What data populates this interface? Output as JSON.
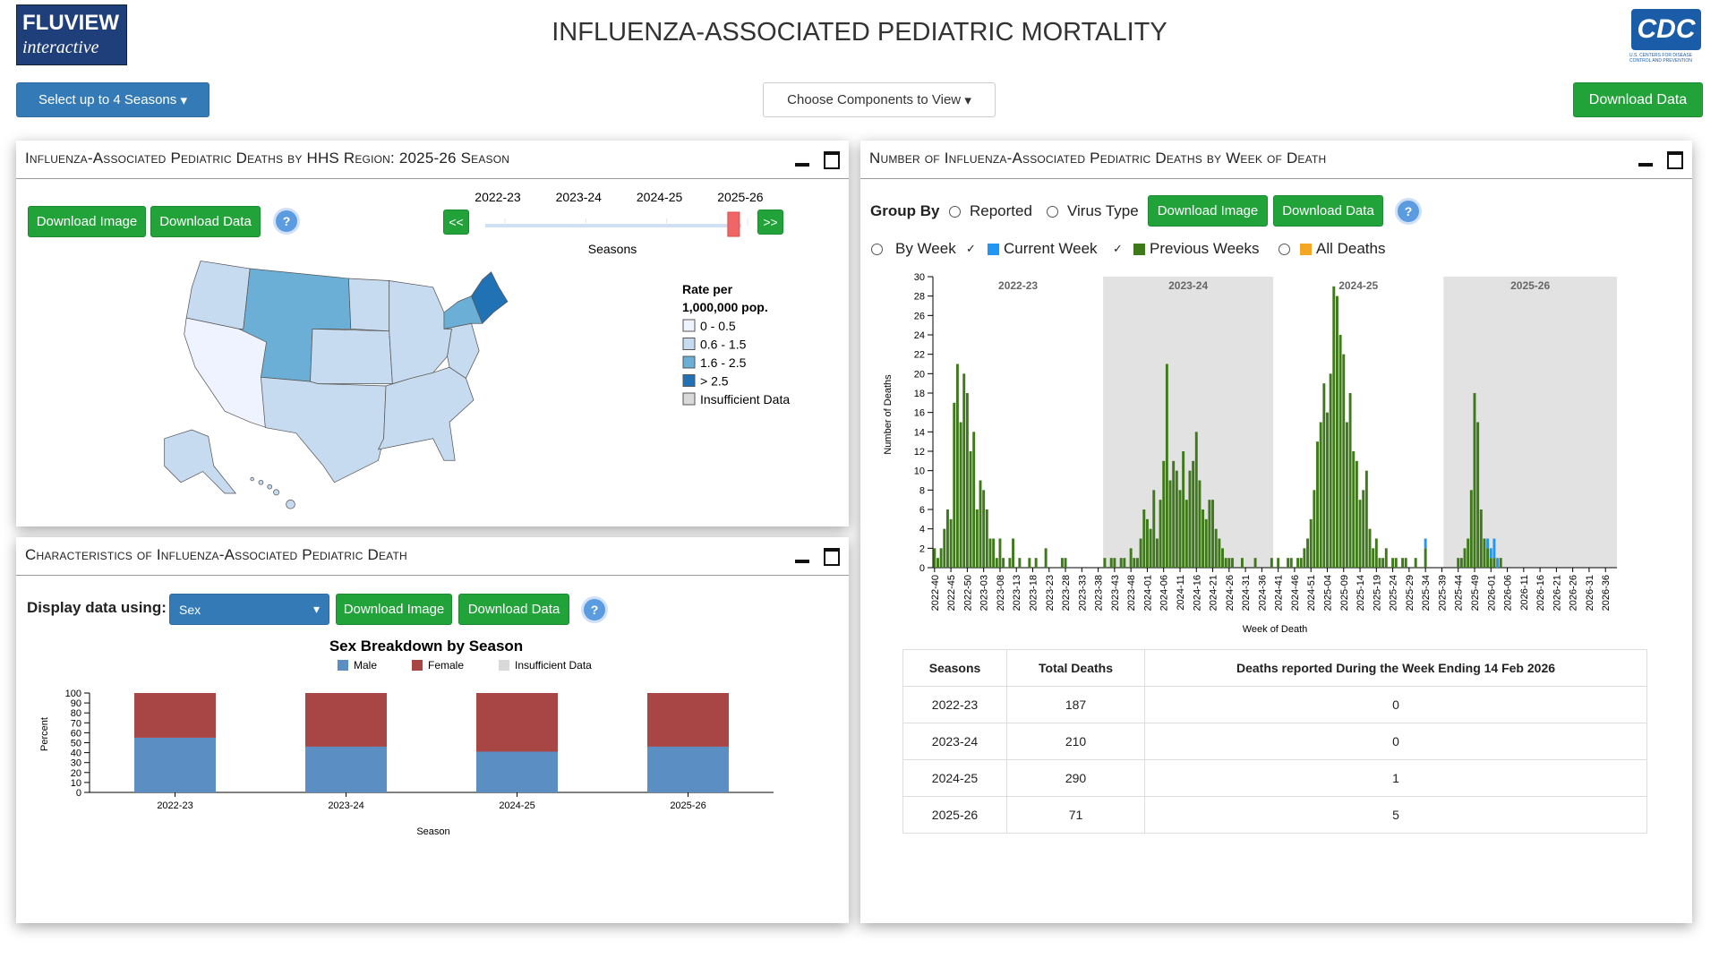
{
  "header": {
    "logo_name": "FLUVIEW",
    "logo_tagline": "interactive",
    "title": "INFLUENZA-ASSOCIATED PEDIATRIC MORTALITY",
    "agency_logo": "CDC",
    "agency_caption": "U.S. CENTERS FOR DISEASE CONTROL AND PREVENTION"
  },
  "toolbar": {
    "seasons_button": "Select up to 4 Seasons",
    "components_button": "Choose Components to View",
    "download_button": "Download Data"
  },
  "map_panel": {
    "title": "Influenza-Associated Pediatric Deaths by HHS Region: 2025-26 Season",
    "download_image": "Download Image",
    "download_data": "Download Data",
    "help": "?",
    "prev": "<<",
    "next": ">>",
    "seasons": [
      "2022-23",
      "2023-24",
      "2024-25",
      "2025-26"
    ],
    "seasons_label": "Seasons",
    "selected_index": 3
  },
  "characteristics_panel": {
    "title": "Characteristics of Influenza-Associated Pediatric Death",
    "display_label": "Display data using:",
    "select_value": "Sex",
    "download_image": "Download Image",
    "download_data": "Download Data",
    "help": "?"
  },
  "weekly_panel": {
    "title": "Number of Influenza-Associated Pediatric Deaths by Week of Death",
    "group_by": "Group By",
    "option_reported": "Reported",
    "option_virus": "Virus Type",
    "download_image": "Download Image",
    "download_data": "Download Data",
    "help": "?",
    "option_by_week": "By Week",
    "option_all_deaths": "All Deaths",
    "all_deaths_color": "#f5a623"
  },
  "table": {
    "columns": [
      "Seasons",
      "Total Deaths",
      "Deaths reported During the Week Ending 14 Feb 2026"
    ],
    "rows": [
      [
        "2022-23",
        187,
        0
      ],
      [
        "2023-24",
        210,
        0
      ],
      [
        "2024-25",
        290,
        1
      ],
      [
        "2025-26",
        71,
        5
      ]
    ]
  },
  "chart_data": [
    {
      "type": "bar",
      "stacked": true,
      "xlabel": "Week of Death",
      "ylabel": "Number of Deaths",
      "ylim": [
        0,
        30
      ],
      "yticks": [
        0,
        2,
        4,
        6,
        8,
        10,
        12,
        14,
        16,
        18,
        20,
        22,
        24,
        26,
        28,
        30
      ],
      "seasons": [
        {
          "label": "2022-23",
          "weeks": 52,
          "shaded": false
        },
        {
          "label": "2023-24",
          "weeks": 52,
          "shaded": true
        },
        {
          "label": "2024-25",
          "weeks": 52,
          "shaded": false
        },
        {
          "label": "2025-26",
          "weeks": 53,
          "shaded": true
        }
      ],
      "categories": [
        "2022-40",
        null,
        null,
        null,
        null,
        "2022-45",
        null,
        null,
        null,
        null,
        "2022-50",
        null,
        null,
        null,
        null,
        "2023-03",
        null,
        null,
        null,
        null,
        "2023-08",
        null,
        null,
        null,
        null,
        "2023-13",
        null,
        null,
        null,
        null,
        "2023-18",
        null,
        null,
        null,
        null,
        "2023-23",
        null,
        null,
        null,
        null,
        "2023-28",
        null,
        null,
        null,
        null,
        "2023-33",
        null,
        null,
        null,
        null,
        "2023-38",
        null,
        null,
        null,
        null,
        "2023-43",
        null,
        null,
        null,
        null,
        "2023-48",
        null,
        null,
        null,
        null,
        "2024-01",
        null,
        null,
        null,
        null,
        "2024-06",
        null,
        null,
        null,
        null,
        "2024-11",
        null,
        null,
        null,
        null,
        "2024-16",
        null,
        null,
        null,
        null,
        "2024-21",
        null,
        null,
        null,
        null,
        "2024-26",
        null,
        null,
        null,
        null,
        "2024-31",
        null,
        null,
        null,
        null,
        "2024-36",
        null,
        null,
        null,
        null,
        "2024-41",
        null,
        null,
        null,
        null,
        "2024-46",
        null,
        null,
        null,
        null,
        "2024-51",
        null,
        null,
        null,
        null,
        "2025-04",
        null,
        null,
        null,
        null,
        "2025-09",
        null,
        null,
        null,
        null,
        "2025-14",
        null,
        null,
        null,
        null,
        "2025-19",
        null,
        null,
        null,
        null,
        "2025-24",
        null,
        null,
        null,
        null,
        "2025-29",
        null,
        null,
        null,
        null,
        "2025-34",
        null,
        null,
        null,
        null,
        "2025-39",
        null,
        null,
        null,
        null,
        "2025-44",
        null,
        null,
        null,
        null,
        "2025-49",
        null,
        null,
        null,
        null,
        "2026-01",
        null,
        null,
        null,
        null,
        "2026-06",
        null,
        null,
        null,
        null,
        "2026-11",
        null,
        null,
        null,
        null,
        "2026-16",
        null,
        null,
        null,
        null,
        "2026-21",
        null,
        null,
        null,
        null,
        "2026-26",
        null,
        null,
        null,
        null,
        "2026-31",
        null,
        null,
        null,
        null,
        "2026-36",
        null,
        null,
        null
      ],
      "series": [
        {
          "name": "Previous Weeks",
          "color": "#3f7a1a",
          "values": [
            2,
            1,
            2,
            4,
            6,
            5,
            17,
            21,
            15,
            20,
            18,
            12,
            14,
            6,
            9,
            8,
            6,
            3,
            3,
            1,
            3,
            1,
            0,
            1,
            3,
            0,
            1,
            0,
            0,
            1,
            0,
            1,
            0,
            0,
            2,
            0,
            0,
            0,
            0,
            1,
            1,
            0,
            0,
            0,
            0,
            0,
            0,
            0,
            0,
            0,
            0,
            0,
            1,
            0,
            1,
            1,
            0,
            1,
            1,
            0,
            2,
            1,
            1,
            3,
            6,
            5,
            4,
            8,
            3,
            7,
            11,
            21,
            9,
            11,
            10,
            8,
            12,
            7,
            10,
            11,
            14,
            9,
            6,
            5,
            7,
            7,
            4,
            3,
            2,
            1,
            1,
            1,
            0,
            0,
            1,
            0,
            0,
            0,
            1,
            0,
            0,
            0,
            0,
            1,
            0,
            1,
            0,
            0,
            1,
            1,
            0,
            1,
            1,
            2,
            3,
            5,
            8,
            13,
            15,
            19,
            16,
            20,
            29,
            28,
            24,
            22,
            15,
            18,
            12,
            11,
            7,
            8,
            10,
            4,
            2,
            3,
            1,
            1,
            2,
            0,
            1,
            1,
            0,
            1,
            1,
            0,
            0,
            1,
            0,
            0,
            2,
            0,
            0,
            0,
            0,
            0,
            0,
            0,
            0,
            0,
            1,
            1,
            2,
            3,
            8,
            18,
            15,
            6,
            3,
            2,
            1,
            1,
            0,
            1,
            0,
            0,
            null,
            null,
            null,
            null,
            null,
            null,
            null,
            null,
            null,
            null,
            null,
            null,
            null,
            null,
            null,
            null,
            null,
            null,
            null,
            null,
            null,
            null,
            null,
            null,
            null,
            null,
            null,
            null,
            null,
            null,
            null,
            null,
            null
          ]
        },
        {
          "name": "Current Week",
          "color": "#2196f3",
          "values": [
            null,
            null,
            null,
            null,
            null,
            null,
            null,
            null,
            null,
            null,
            null,
            null,
            null,
            null,
            null,
            null,
            null,
            null,
            null,
            null,
            null,
            null,
            null,
            null,
            null,
            null,
            null,
            null,
            null,
            null,
            null,
            null,
            null,
            null,
            null,
            null,
            null,
            null,
            null,
            null,
            null,
            null,
            null,
            null,
            null,
            null,
            null,
            null,
            null,
            null,
            null,
            null,
            null,
            null,
            null,
            null,
            null,
            null,
            null,
            null,
            null,
            null,
            null,
            null,
            null,
            null,
            null,
            null,
            null,
            null,
            null,
            null,
            null,
            null,
            null,
            null,
            null,
            null,
            null,
            null,
            null,
            null,
            null,
            null,
            null,
            null,
            null,
            null,
            null,
            null,
            null,
            null,
            null,
            null,
            null,
            null,
            null,
            null,
            null,
            null,
            null,
            null,
            null,
            null,
            null,
            null,
            null,
            null,
            null,
            null,
            null,
            null,
            null,
            null,
            null,
            null,
            null,
            null,
            null,
            null,
            null,
            null,
            null,
            null,
            null,
            null,
            null,
            null,
            null,
            null,
            null,
            null,
            null,
            null,
            null,
            null,
            null,
            null,
            null,
            null,
            null,
            null,
            null,
            null,
            null,
            null,
            null,
            null,
            null,
            null,
            1,
            null,
            null,
            null,
            null,
            null,
            null,
            null,
            null,
            null,
            null,
            null,
            null,
            null,
            null,
            null,
            null,
            null,
            null,
            1,
            1,
            2,
            1,
            null,
            null,
            null,
            null,
            null,
            null,
            null,
            null,
            null,
            null,
            null,
            null,
            null,
            null,
            null,
            null,
            null,
            null,
            null,
            null,
            null,
            null,
            null,
            null,
            null,
            null,
            null,
            null,
            null,
            null,
            null,
            null,
            null,
            null,
            null,
            null
          ]
        }
      ]
    },
    {
      "type": "bar",
      "stacked": true,
      "title": "Sex Breakdown by Season",
      "xlabel": "Season",
      "ylabel": "Percent",
      "categories": [
        "2022-23",
        "2023-24",
        "2024-25",
        "2025-26"
      ],
      "ylim": [
        0,
        100
      ],
      "yticks": [
        0,
        10,
        20,
        30,
        40,
        50,
        60,
        70,
        80,
        90,
        100
      ],
      "series": [
        {
          "name": "Male",
          "color": "#5b8fc4",
          "values": [
            55,
            46,
            41,
            46
          ]
        },
        {
          "name": "Female",
          "color": "#a84545",
          "values": [
            45,
            54,
            59,
            54
          ]
        },
        {
          "name": "Insufficient Data",
          "color": "#d9d9d9",
          "values": [
            0,
            0,
            0,
            0
          ]
        }
      ]
    },
    {
      "type": "choropleth",
      "legend_title_lines": [
        "Rate per",
        "1,000,000 pop."
      ],
      "bins": [
        {
          "label": "0 - 0.5",
          "color": "#eff3ff"
        },
        {
          "label": "0.6 - 1.5",
          "color": "#c6dbef"
        },
        {
          "label": "1.6 - 2.5",
          "color": "#6baed6"
        },
        {
          "label": "> 2.5",
          "color": "#2171b5"
        },
        {
          "label": "Insufficient Data",
          "color": "#d9d9d9"
        }
      ],
      "region_bins": [
        1,
        0,
        2,
        1,
        1,
        1,
        1,
        1,
        1,
        2,
        3,
        1,
        1
      ]
    }
  ]
}
